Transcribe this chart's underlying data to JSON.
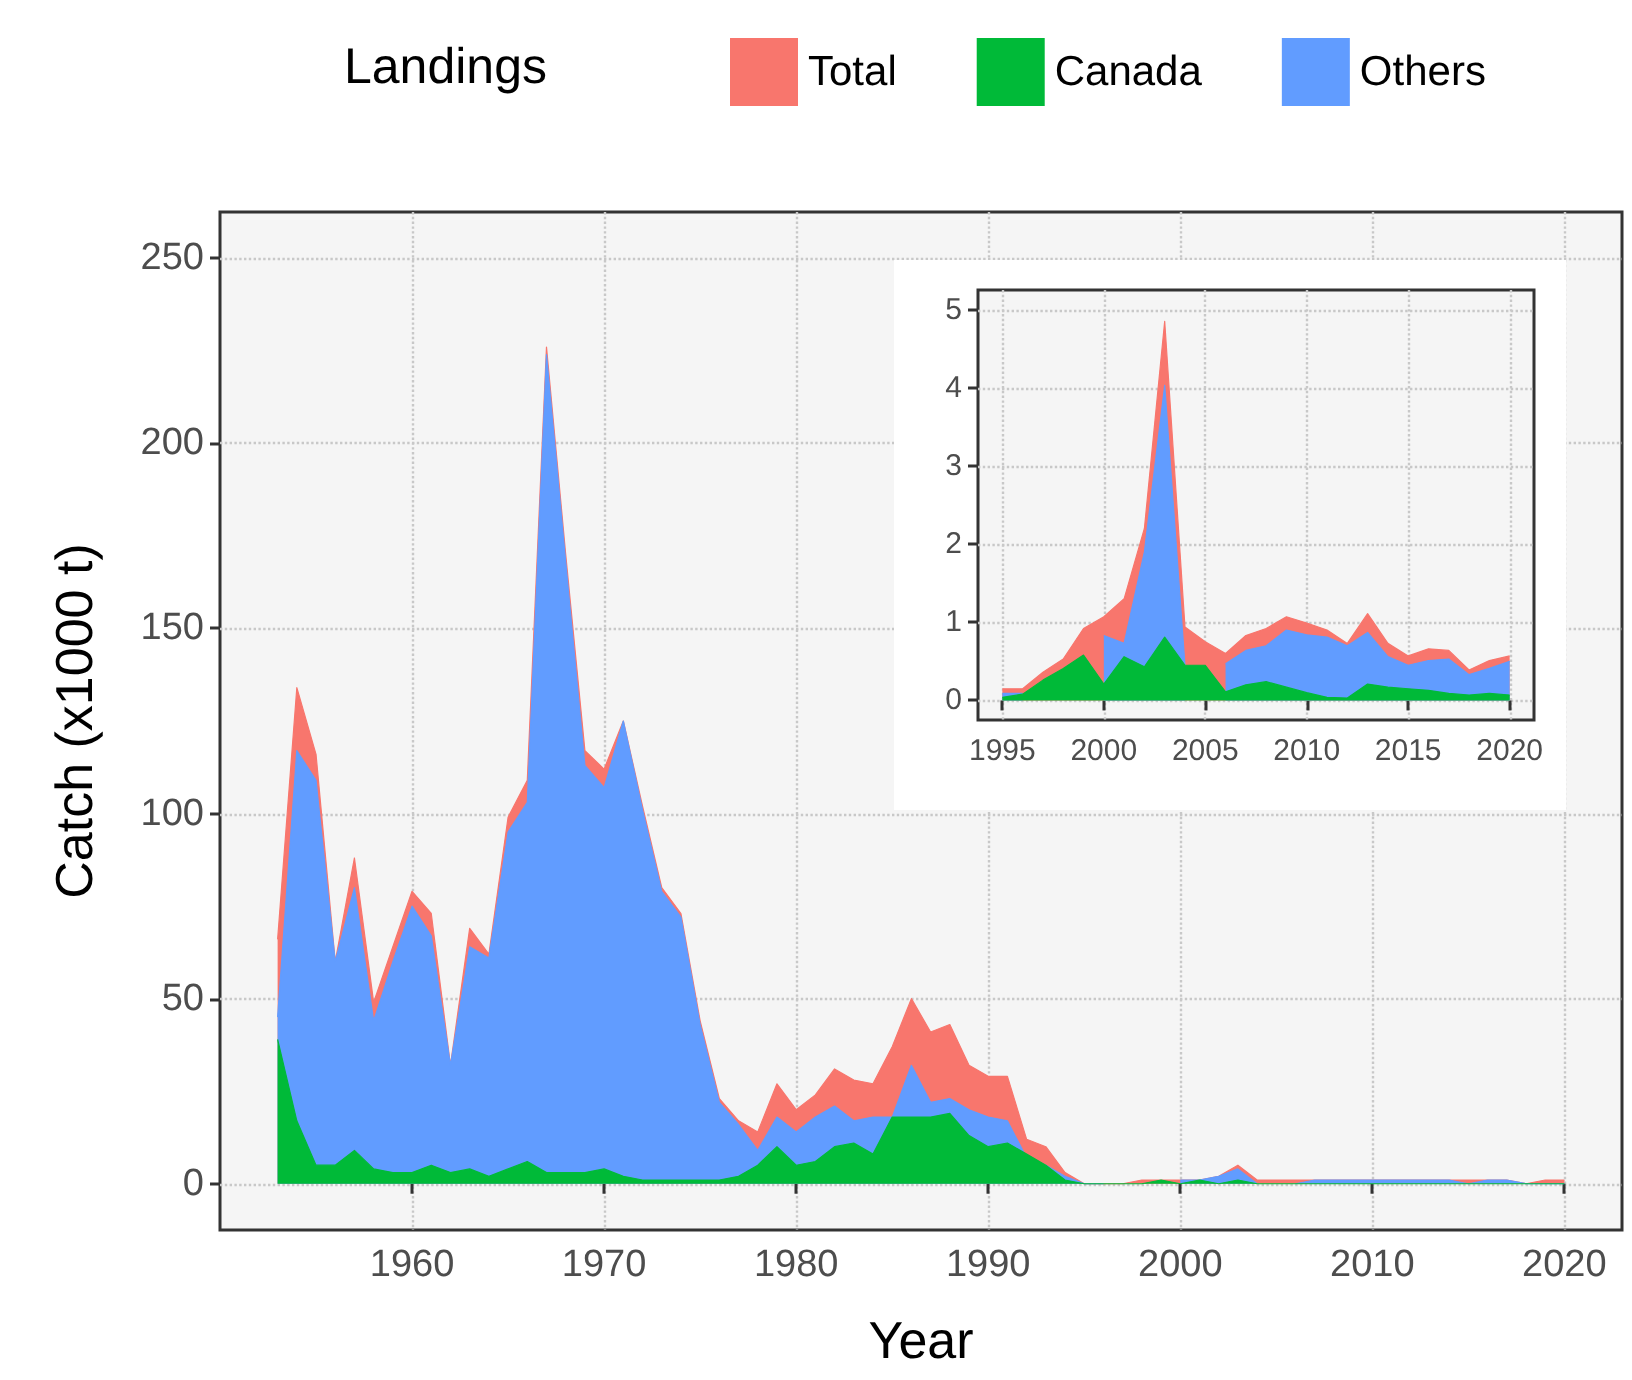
{
  "chart_data": [
    {
      "type": "area",
      "xlabel": "Year",
      "ylabel": "Catch (x1000 t)",
      "legend_title": "Landings",
      "legend": "top",
      "grid": true,
      "x": [
        1953,
        1954,
        1955,
        1956,
        1957,
        1958,
        1959,
        1960,
        1961,
        1962,
        1963,
        1964,
        1965,
        1966,
        1967,
        1968,
        1969,
        1970,
        1971,
        1972,
        1973,
        1974,
        1975,
        1976,
        1977,
        1978,
        1979,
        1980,
        1981,
        1982,
        1983,
        1984,
        1985,
        1986,
        1987,
        1988,
        1989,
        1990,
        1991,
        1992,
        1993,
        1994,
        1995,
        1996,
        1997,
        1998,
        1999,
        2000,
        2001,
        2002,
        2003,
        2004,
        2005,
        2006,
        2007,
        2008,
        2009,
        2010,
        2011,
        2012,
        2013,
        2014,
        2015,
        2016,
        2017,
        2018,
        2019,
        2020
      ],
      "xlim": [
        1950,
        2023
      ],
      "xticks": [
        1960,
        1970,
        1980,
        1990,
        2000,
        2010,
        2020
      ],
      "ylim": [
        -12.5,
        262.5
      ],
      "yticks": [
        0,
        50,
        100,
        150,
        200,
        250
      ],
      "series": [
        {
          "name": "Total",
          "color": "#f8766d",
          "values": [
            66,
            134,
            116,
            60,
            88,
            49,
            64,
            79,
            73,
            32,
            69,
            62,
            99,
            109,
            226,
            170,
            117,
            112,
            125,
            102,
            80,
            73,
            44,
            23,
            17,
            14,
            27,
            20,
            24,
            31,
            28,
            27,
            37,
            50,
            41,
            43,
            32,
            29,
            29,
            12,
            10,
            3,
            0,
            0,
            0,
            1,
            1,
            1,
            1,
            2,
            5,
            1,
            1,
            1,
            1,
            1,
            1,
            1,
            1,
            1,
            1,
            1,
            1,
            1,
            1,
            0,
            1,
            1
          ]
        },
        {
          "name": "Canada",
          "color": "#00ba38",
          "values": [
            39,
            17,
            5,
            5,
            9,
            4,
            3,
            3,
            5,
            3,
            4,
            2,
            4,
            6,
            3,
            3,
            3,
            4,
            2,
            1,
            1,
            1,
            1,
            1,
            2,
            5,
            10,
            5,
            6,
            10,
            11,
            8,
            18,
            18,
            18,
            19,
            13,
            10,
            11,
            8,
            5,
            1,
            0,
            0,
            0,
            0,
            1,
            0,
            1,
            0,
            1,
            0,
            0,
            0,
            0,
            0,
            0,
            0,
            0,
            0,
            0,
            0,
            0,
            0,
            0,
            0,
            0,
            0
          ]
        },
        {
          "name": "Others",
          "color": "#619cff",
          "values": [
            45,
            117,
            109,
            60,
            80,
            44,
            60,
            75,
            67,
            32,
            64,
            61,
            95,
            103,
            224,
            168,
            113,
            107,
            125,
            101,
            79,
            72,
            43,
            22,
            16,
            9,
            18,
            14,
            18,
            21,
            17,
            18,
            18,
            32,
            22,
            23,
            20,
            18,
            17,
            7,
            5,
            2,
            0,
            0,
            null,
            null,
            null,
            1,
            1,
            2,
            4,
            0,
            null,
            0,
            1,
            1,
            1,
            1,
            1,
            1,
            1,
            1,
            0,
            1,
            1,
            0,
            0,
            0
          ]
        }
      ]
    },
    {
      "type": "area",
      "grid": true,
      "x": [
        1995,
        1996,
        1997,
        1998,
        1999,
        2000,
        2001,
        2002,
        2003,
        2004,
        2005,
        2006,
        2007,
        2008,
        2009,
        2010,
        2011,
        2012,
        2013,
        2014,
        2015,
        2016,
        2017,
        2018,
        2019,
        2020
      ],
      "xlim": [
        1993.8,
        2021.2
      ],
      "xticks": [
        1995,
        2000,
        2005,
        2010,
        2015,
        2020
      ],
      "ylim": [
        -0.25,
        5.25
      ],
      "yticks": [
        0,
        1,
        2,
        3,
        4,
        5
      ],
      "series": [
        {
          "color": "#f8766d",
          "values": [
            0.15,
            0.15,
            0.36,
            0.53,
            0.92,
            1.07,
            1.3,
            2.2,
            4.85,
            0.94,
            0.75,
            0.6,
            0.83,
            0.92,
            1.07,
            0.99,
            0.9,
            0.73,
            1.11,
            0.73,
            0.57,
            0.66,
            0.64,
            0.39,
            0.51,
            0.57
          ]
        },
        {
          "color": "#00ba38",
          "values": [
            0.04,
            0.08,
            0.26,
            0.41,
            0.58,
            0.21,
            0.56,
            0.43,
            0.81,
            0.45,
            0.45,
            0.11,
            0.2,
            0.24,
            0.17,
            0.1,
            0.04,
            0.03,
            0.21,
            0.17,
            0.15,
            0.13,
            0.09,
            0.07,
            0.09,
            0.07
          ]
        },
        {
          "color": "#619cff",
          "values": [
            0.09,
            0.09,
            null,
            null,
            null,
            0.83,
            0.73,
            1.9,
            4.03,
            0.45,
            null,
            0.47,
            0.64,
            0.7,
            0.9,
            0.84,
            0.81,
            0.7,
            0.87,
            0.56,
            0.45,
            0.51,
            0.53,
            0.33,
            0.41,
            0.5
          ]
        }
      ]
    }
  ]
}
